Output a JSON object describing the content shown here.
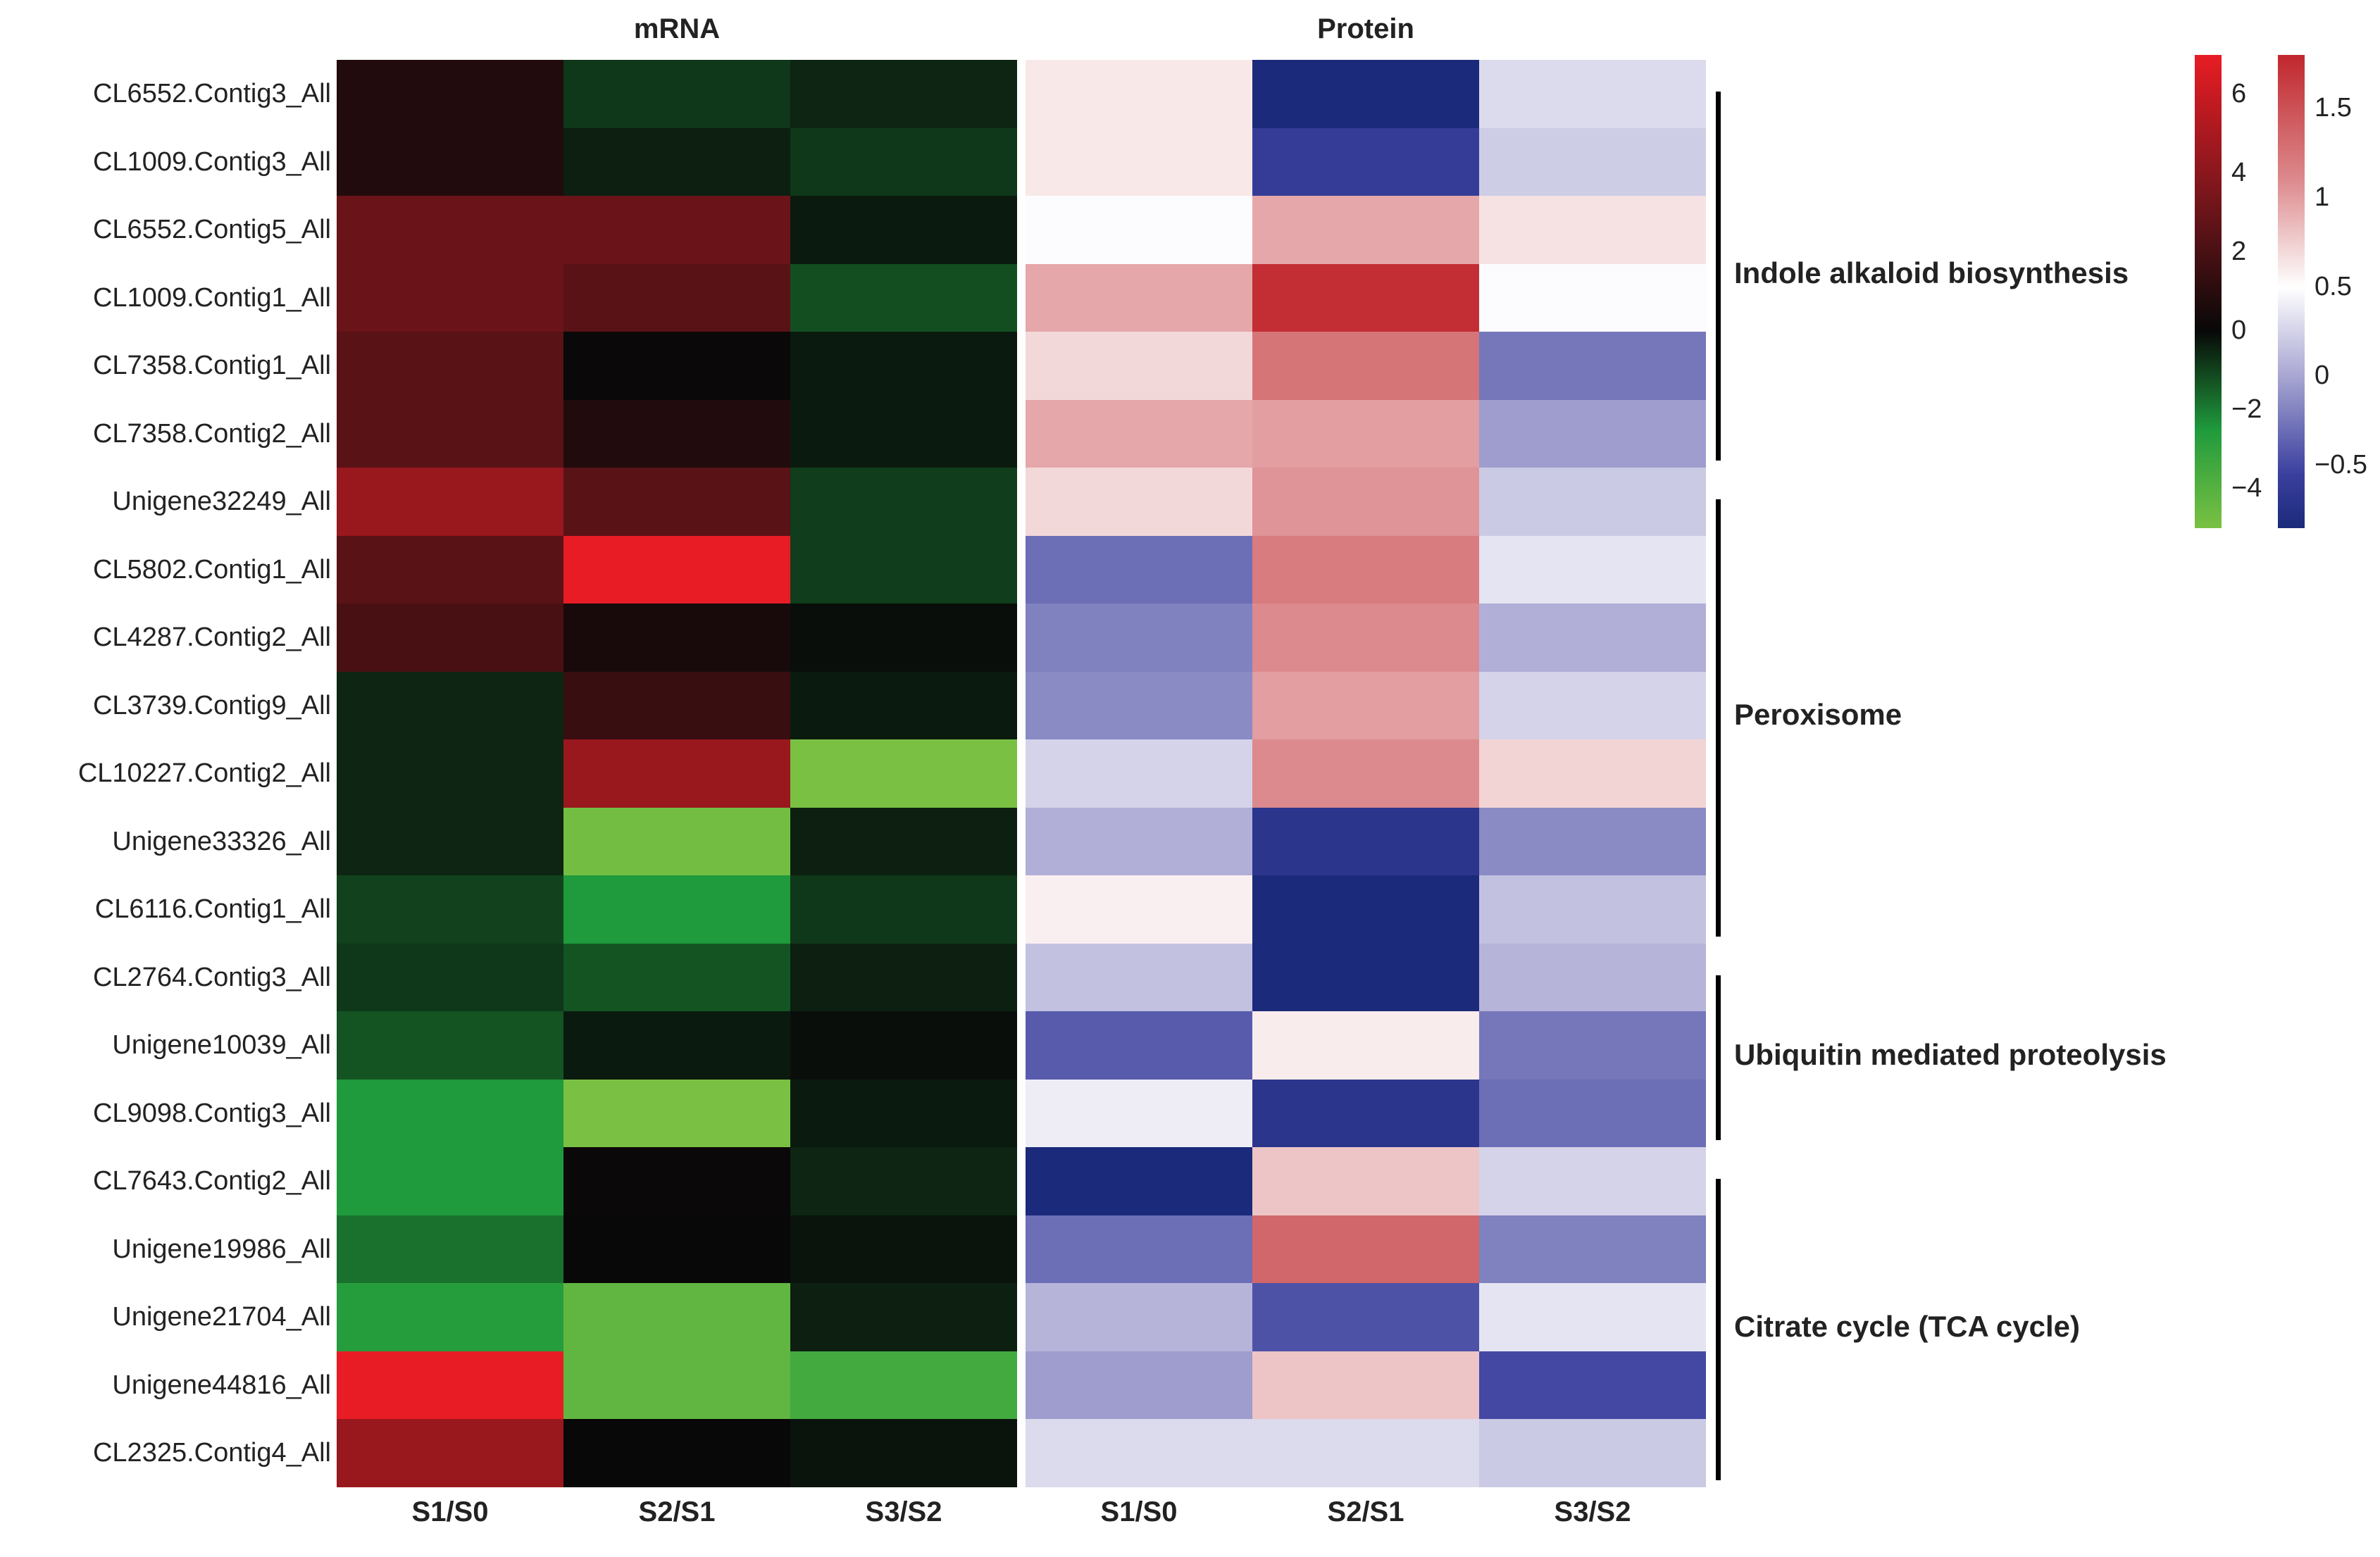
{
  "chart_data": [
    {
      "type": "heatmap",
      "title": "mRNA",
      "columns": [
        "S1/S0",
        "S2/S1",
        "S3/S2"
      ],
      "rows": [
        "CL6552.Contig3_All",
        "CL1009.Contig3_All",
        "CL6552.Contig5_All",
        "CL1009.Contig1_All",
        "CL7358.Contig1_All",
        "CL7358.Contig2_All",
        "Unigene32249_All",
        "CL5802.Contig1_All",
        "CL4287.Contig2_All",
        "CL3739.Contig9_All",
        "CL10227.Contig2_All",
        "Unigene33326_All",
        "CL6116.Contig1_All",
        "CL2764.Contig3_All",
        "Unigene10039_All",
        "CL9098.Contig3_All",
        "CL7643.Contig2_All",
        "Unigene19986_All",
        "Unigene21704_All",
        "Unigene44816_All",
        "CL2325.Contig4_All"
      ],
      "values": [
        [
          0.8,
          -0.8,
          -0.5
        ],
        [
          0.8,
          -0.4,
          -0.8
        ],
        [
          3.0,
          3.0,
          -0.3
        ],
        [
          3.0,
          2.5,
          -1.2
        ],
        [
          2.5,
          0.1,
          -0.3
        ],
        [
          2.5,
          0.8,
          -0.3
        ],
        [
          4.5,
          2.5,
          -0.9
        ],
        [
          2.5,
          7.0,
          -0.9
        ],
        [
          2.0,
          0.5,
          -0.1
        ],
        [
          -0.5,
          1.5,
          -0.3
        ],
        [
          -0.5,
          4.5,
          -5.0
        ],
        [
          -0.5,
          -4.8,
          -0.4
        ],
        [
          -1.0,
          -2.5,
          -0.8
        ],
        [
          -0.8,
          -1.3,
          -0.4
        ],
        [
          -1.3,
          -0.3,
          -0.1
        ],
        [
          -2.5,
          -5.0,
          -0.3
        ],
        [
          -2.5,
          0.1,
          -0.5
        ],
        [
          -1.8,
          0.0,
          -0.2
        ],
        [
          -2.7,
          -4.3,
          -0.4
        ],
        [
          7.0,
          -4.3,
          -3.5
        ],
        [
          4.5,
          0.0,
          -0.2
        ]
      ],
      "colorscale": [
        {
          "value": -5.0,
          "color": "#7ac143"
        },
        {
          "value": -2.5,
          "color": "#1f9a3c"
        },
        {
          "value": 0.0,
          "color": "#080808"
        },
        {
          "value": 3.5,
          "color": "#7a161c"
        },
        {
          "value": 7.0,
          "color": "#e81c24"
        }
      ],
      "colorbar_ticks": [
        "6",
        "4",
        "2",
        "0",
        "−2",
        "−4"
      ],
      "colorbar_tick_values": [
        6,
        4,
        2,
        0,
        -2,
        -4
      ],
      "colorbar_range": [
        -5,
        7
      ]
    },
    {
      "type": "heatmap",
      "title": "Protein",
      "columns": [
        "S1/S0",
        "S2/S1",
        "S3/S2"
      ],
      "rows": [
        "CL6552.Contig3_All",
        "CL1009.Contig3_All",
        "CL6552.Contig5_All",
        "CL1009.Contig1_All",
        "CL7358.Contig1_All",
        "CL7358.Contig2_All",
        "Unigene32249_All",
        "CL5802.Contig1_All",
        "CL4287.Contig2_All",
        "CL3739.Contig9_All",
        "CL10227.Contig2_All",
        "Unigene33326_All",
        "CL6116.Contig1_All",
        "CL2764.Contig3_All",
        "Unigene10039_All",
        "CL9098.Contig3_All",
        "CL7643.Contig2_All",
        "Unigene19986_All",
        "Unigene21704_All",
        "Unigene44816_All",
        "CL2325.Contig4_All"
      ],
      "values": [
        [
          0.62,
          -0.85,
          0.3
        ],
        [
          0.62,
          -0.6,
          0.22
        ],
        [
          0.48,
          0.95,
          0.65
        ],
        [
          0.95,
          1.75,
          0.48
        ],
        [
          0.7,
          1.25,
          -0.25
        ],
        [
          0.95,
          1.0,
          -0.05
        ],
        [
          0.7,
          1.05,
          0.2
        ],
        [
          -0.3,
          1.2,
          0.35
        ],
        [
          -0.2,
          1.1,
          0.05
        ],
        [
          -0.15,
          1.0,
          0.25
        ],
        [
          0.25,
          1.1,
          0.72
        ],
        [
          0.05,
          -0.7,
          -0.15
        ],
        [
          0.58,
          -0.85,
          0.15
        ],
        [
          0.15,
          -0.85,
          0.08
        ],
        [
          -0.4,
          0.6,
          -0.25
        ],
        [
          0.4,
          -0.7,
          -0.3
        ],
        [
          -0.85,
          0.8,
          0.25
        ],
        [
          -0.3,
          1.35,
          -0.2
        ],
        [
          0.08,
          -0.45,
          0.35
        ],
        [
          -0.05,
          0.8,
          -0.5
        ],
        [
          0.3,
          0.3,
          0.2
        ]
      ],
      "colorscale": [
        {
          "value": -0.85,
          "color": "#1b2a7a"
        },
        {
          "value": -0.55,
          "color": "#3a3f9e"
        },
        {
          "value": 0.0,
          "color": "#a8a6d2"
        },
        {
          "value": 0.5,
          "color": "#ffffff"
        },
        {
          "value": 1.1,
          "color": "#dc8a8d"
        },
        {
          "value": 1.8,
          "color": "#c0272d"
        }
      ],
      "colorbar_ticks": [
        "1.5",
        "1",
        "0.5",
        "0",
        "−0.5"
      ],
      "colorbar_tick_values": [
        1.5,
        1.0,
        0.5,
        0.0,
        -0.5
      ],
      "colorbar_range": [
        -0.85,
        1.8
      ]
    }
  ],
  "pathways": [
    {
      "label": "Indole alkaloid biosynthesis",
      "first_row": 0,
      "last_row": 5
    },
    {
      "label": "Peroxisome",
      "first_row": 6,
      "last_row": 12
    },
    {
      "label": "Ubiquitin mediated proteolysis",
      "first_row": 13,
      "last_row": 15
    },
    {
      "label": "Citrate cycle (TCA cycle)",
      "first_row": 16,
      "last_row": 20
    }
  ]
}
